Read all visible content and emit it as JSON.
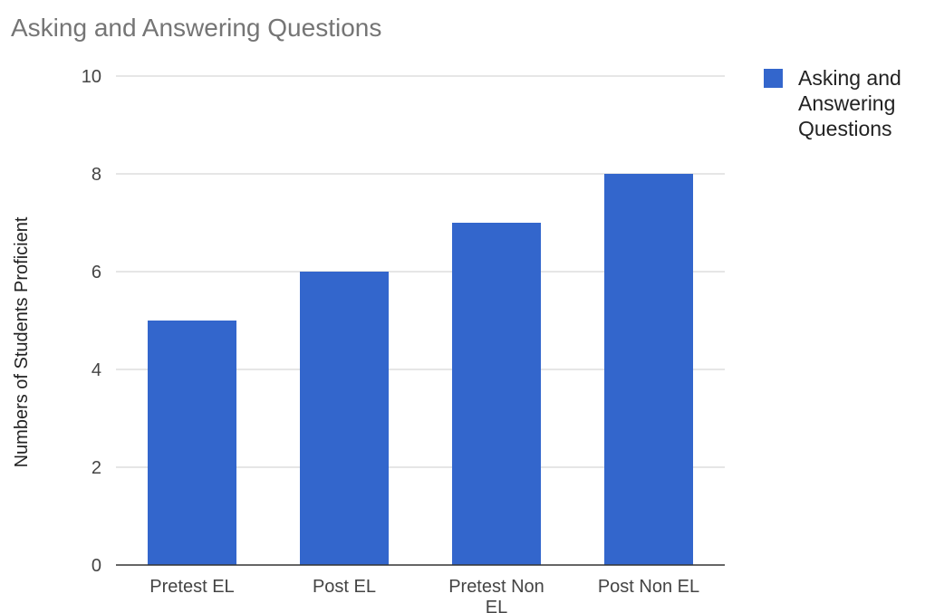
{
  "chart_data": {
    "type": "bar",
    "title": "Asking and Answering Questions",
    "xlabel": "",
    "ylabel": "Numbers of Students Proficient",
    "categories": [
      "Pretest EL",
      "Post EL",
      "Pretest Non EL",
      "Post Non EL"
    ],
    "series": [
      {
        "name": "Asking and Answering Questions",
        "values": [
          5,
          6,
          7,
          8
        ],
        "color": "#3366cc"
      }
    ],
    "ylim": [
      0,
      10
    ],
    "yticks": [
      0,
      2,
      4,
      6,
      8,
      10
    ],
    "grid": true,
    "legend": "right"
  }
}
